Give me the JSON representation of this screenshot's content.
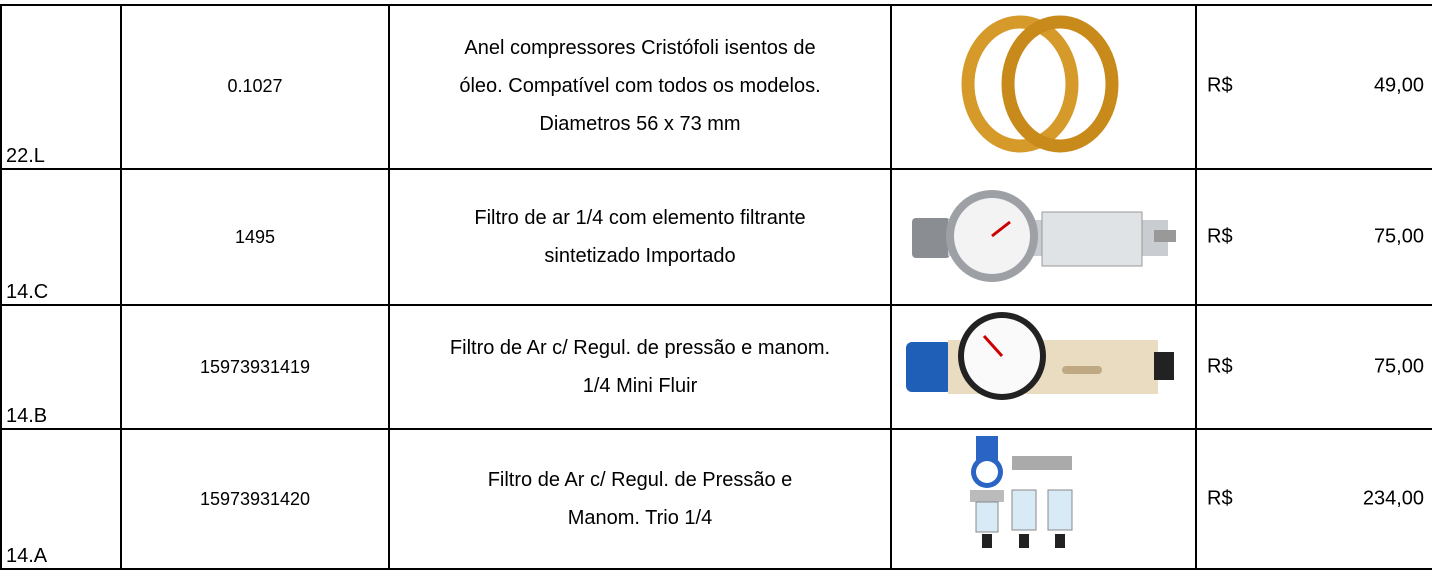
{
  "table": {
    "rows": [
      {
        "id": "22.L",
        "code": "0.1027",
        "description": [
          "Anel compressores Cristófoli isentos de",
          "óleo.  Compatível com todos os modelos.",
          "Diametros 56 x 73 mm"
        ],
        "currency": "R$",
        "price": "49,00"
      },
      {
        "id": "14.C",
        "code": "1495",
        "description": [
          "Filtro de ar 1/4 com elemento filtrante",
          "sintetizado Importado"
        ],
        "currency": "R$",
        "price": "75,00"
      },
      {
        "id": "14.B",
        "code": "15973931419",
        "description": [
          "Filtro de Ar c/ Regul. de pressão e manom.",
          "1/4 Mini Fluir"
        ],
        "currency": "R$",
        "price": "75,00"
      },
      {
        "id": "14.A",
        "code": "15973931420",
        "description": [
          "Filtro de Ar c/ Regul. de Pressão e",
          "Manom. Trio 1/4"
        ],
        "currency": "R$",
        "price": "234,00"
      }
    ]
  }
}
